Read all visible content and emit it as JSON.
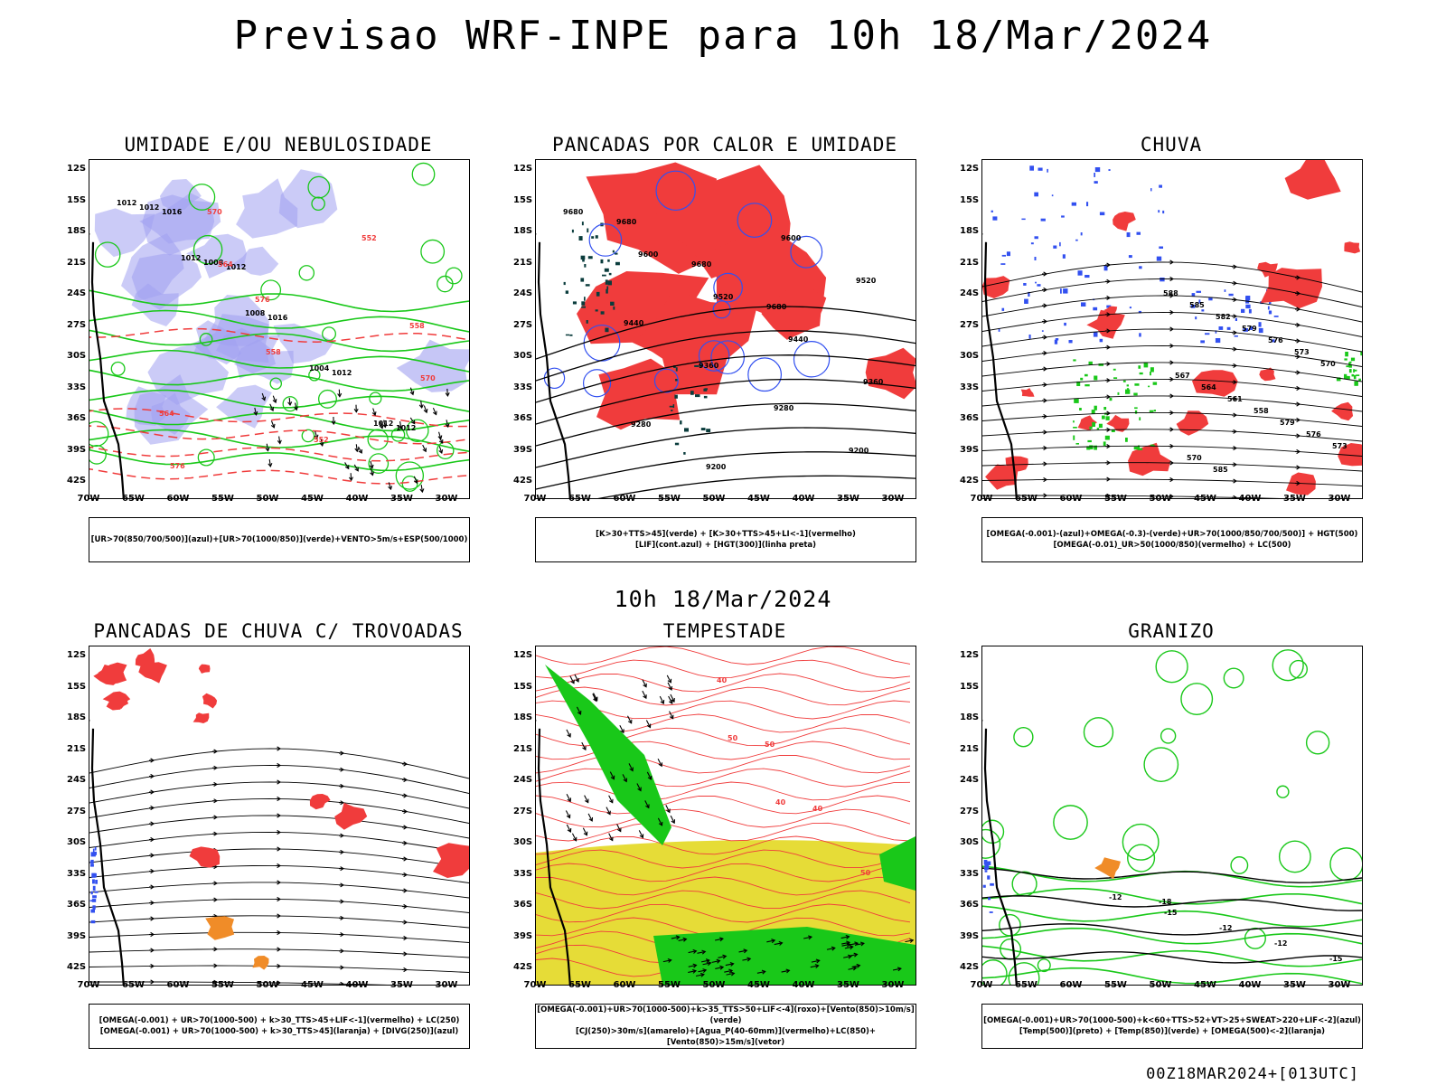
{
  "header": {
    "title": "Previsao WRF-INPE  para 10h 18/Mar/2024"
  },
  "subtitle": "10h 18/Mar/2024",
  "footer": "00Z18MAR2024+[013UTC]",
  "axes": {
    "lat_labels": [
      "12S",
      "15S",
      "18S",
      "21S",
      "24S",
      "27S",
      "30S",
      "33S",
      "36S",
      "39S",
      "42S"
    ],
    "lon_labels": [
      "70W",
      "65W",
      "60W",
      "55W",
      "50W",
      "45W",
      "40W",
      "35W",
      "30W"
    ]
  },
  "colors": {
    "red": "#f03c3c",
    "green": "#19c819",
    "blue": "#3250f0",
    "lavender": "#a0a0f0",
    "yellow": "#e6dc37",
    "orange": "#f08c28",
    "dark": "#0a3c3c"
  },
  "panels": [
    {
      "title": "UMIDADE E/OU NEBULOSIDADE",
      "legend": [
        "[UR>70(850/700/500)](azul)+[UR>70(1000/850)](verde)+VENTO>5m/s+ESP(500/1000)"
      ],
      "contour_labels": [
        "1012",
        "1012",
        "1008",
        "1004",
        "1012",
        "1012",
        "1008",
        "1016",
        "1012",
        "1012",
        "1016",
        "1012",
        "570",
        "576",
        "564",
        "558",
        "552",
        "552",
        "558",
        "564",
        "570",
        "576"
      ]
    },
    {
      "title": "PANCADAS POR CALOR E UMIDADE",
      "legend": [
        "[K>30+TTS>45](verde) + [K>30+TTS>45+LI<-1](vermelho)",
        "[LIF](cont.azul) + [HGT(300)](linha preta)"
      ],
      "contour_labels": [
        "9680",
        "9600",
        "9520",
        "9440",
        "9360",
        "9280",
        "9200",
        "9600",
        "9520",
        "9440",
        "9360",
        "9280",
        "9200",
        "9680",
        "9680",
        "9680"
      ]
    },
    {
      "title": "CHUVA",
      "legend": [
        "[OMEGA(-0.001)-(azul)+OMEGA(-0.3)-(verde)+UR>70(1000/850/700/500)] + HGT(500)",
        "[OMEGA(-0.01)_UR>50(1000/850)(vermelho) + LC(500)"
      ],
      "contour_labels": [
        "588",
        "585",
        "582",
        "579",
        "576",
        "573",
        "570",
        "567",
        "564",
        "561",
        "558",
        "579",
        "576",
        "573",
        "570",
        "585"
      ]
    },
    {
      "title": "PANCADAS DE CHUVA C/ TROVOADAS",
      "legend": [
        "[OMEGA(-0.001) + UR>70(1000-500) + k>30_TTS>45+LIF<-1](vermelho) + LC(250)",
        "[OMEGA(-0.001) + UR>70(1000-500) + k>30_TTS>45](laranja) + [DIVG(250)](azul)"
      ],
      "contour_labels": []
    },
    {
      "title": "TEMPESTADE",
      "legend": [
        "[OMEGA(-0.001)+UR>70(1000-500)+k>35_TTS>50+LIF<-4](roxo)+[Vento(850)>10m/s](verde)",
        "[CJ(250)>30m/s](amarelo)+[Agua_P(40-60mm)](vermelho)+LC(850)+[Vento(850)>15m/s](vetor)"
      ],
      "contour_labels": [
        "40",
        "50",
        "40",
        "50",
        "50",
        "40"
      ]
    },
    {
      "title": "GRANIZO",
      "legend": [
        "[OMEGA(-0.001)+UR>70(1000-500)+k<60+TTS>52+VT>25+SWEAT>220+LIF<-2](azul)",
        "[Temp(500)](preto) + [Temp(850)](verde) + [OMEGA(500)<-2](laranja)"
      ],
      "contour_labels": [
        "-12",
        "-15",
        "-12",
        "-12",
        "-15",
        "-18"
      ]
    }
  ]
}
